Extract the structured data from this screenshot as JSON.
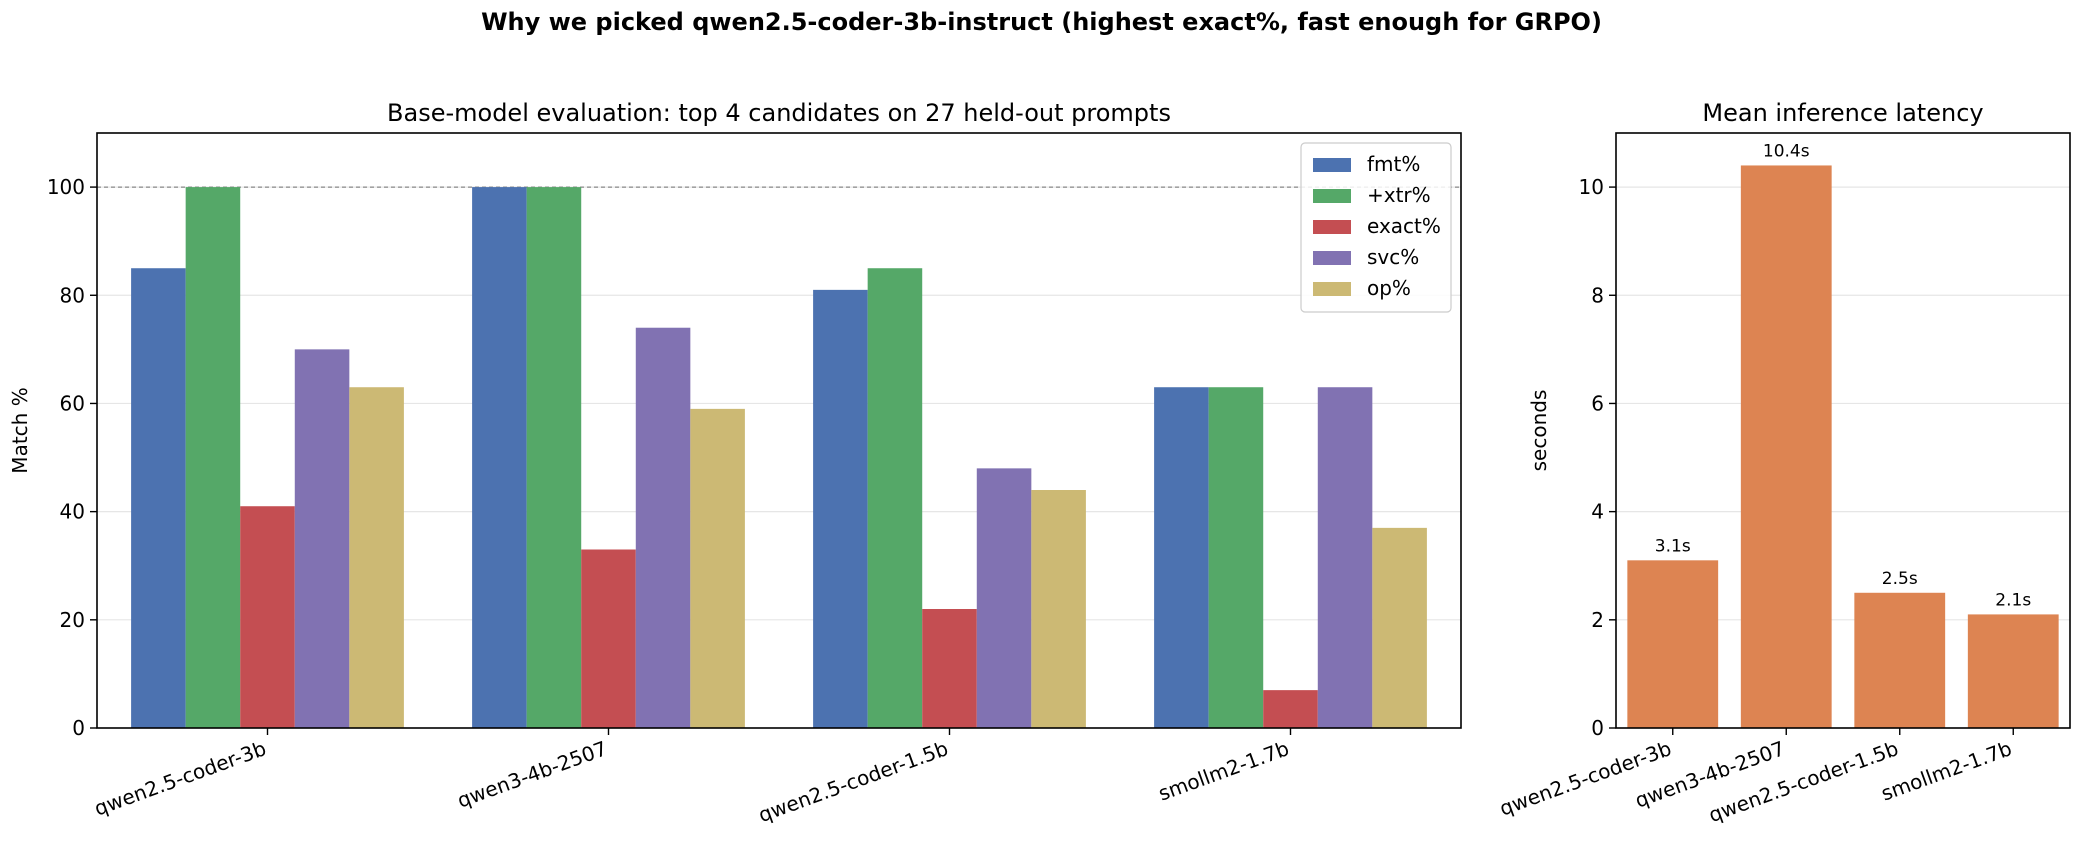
{
  "suptitle": "Why we picked qwen2.5-coder-3b-instruct (highest exact%, fast enough for GRPO)",
  "chart_data": [
    {
      "type": "bar",
      "title": "Base-model evaluation: top 4 candidates on 27 held-out prompts",
      "xlabel": "",
      "ylabel": "Match %",
      "ylim": [
        0,
        110
      ],
      "yticks": [
        0,
        20,
        40,
        60,
        80,
        100
      ],
      "reference_line": 100,
      "grid": "y",
      "legend": "top-right",
      "categories": [
        "qwen2.5-coder-3b",
        "qwen3-4b-2507",
        "qwen2.5-coder-1.5b",
        "smollm2-1.7b"
      ],
      "series": [
        {
          "name": "fmt%",
          "color": "#4c72b0",
          "values": [
            85,
            100,
            81,
            63
          ]
        },
        {
          "name": "+xtr%",
          "color": "#55a868",
          "values": [
            100,
            100,
            85,
            63
          ]
        },
        {
          "name": "exact%",
          "color": "#c44e52",
          "values": [
            41,
            33,
            22,
            7
          ]
        },
        {
          "name": "svc%",
          "color": "#8172b2",
          "values": [
            70,
            74,
            48,
            63
          ]
        },
        {
          "name": "op%",
          "color": "#ccb974",
          "values": [
            63,
            59,
            44,
            37
          ]
        }
      ]
    },
    {
      "type": "bar",
      "title": "Mean inference latency",
      "xlabel": "",
      "ylabel": "seconds",
      "ylim": [
        0,
        11
      ],
      "yticks": [
        0,
        2,
        4,
        6,
        8,
        10
      ],
      "grid": "y",
      "color": "#dd8452",
      "categories": [
        "qwen2.5-coder-3b",
        "qwen3-4b-2507",
        "qwen2.5-coder-1.5b",
        "smollm2-1.7b"
      ],
      "values": [
        3.1,
        10.4,
        2.5,
        2.1
      ],
      "value_labels": [
        "3.1s",
        "10.4s",
        "2.5s",
        "2.1s"
      ]
    }
  ]
}
